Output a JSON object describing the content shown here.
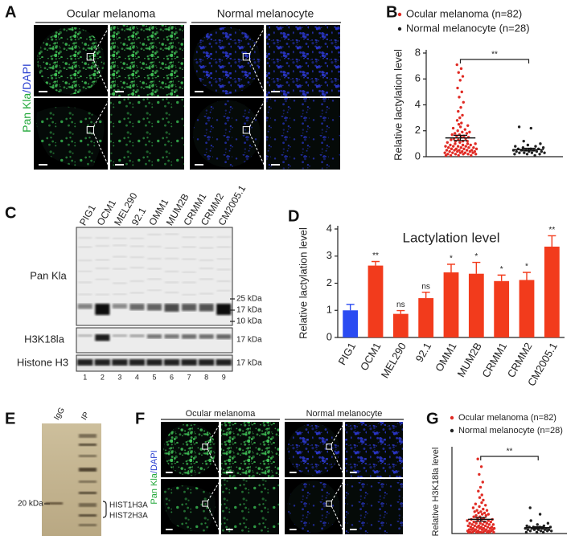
{
  "figure": {
    "A": {
      "label": "A",
      "columns": [
        "Ocular melanoma",
        "Normal melanocyte"
      ],
      "stain": [
        "Pan Kla",
        "/DAPI"
      ]
    },
    "C": {
      "label": "C",
      "lanes": [
        "PIG1",
        "OCM1",
        "MEL290",
        "92.1",
        "OMM1",
        "MUM2B",
        "CRMM1",
        "CRMM2",
        "CM2005.1"
      ],
      "rows": [
        "Pan Kla",
        "H3K18la",
        "Histone H3"
      ],
      "markers": [
        "25 kDa",
        "17 kDa",
        "10 kDa"
      ],
      "row_markers": [
        "17 kDa",
        "17 kDa"
      ],
      "lane_numbers": [
        "1",
        "2",
        "3",
        "4",
        "5",
        "6",
        "7",
        "8",
        "9"
      ]
    },
    "E": {
      "label": "E",
      "lanes": [
        "IgG",
        "IP"
      ],
      "marker": "20 kDa",
      "bands": [
        "HIST1H3A",
        "HIST2H3A"
      ]
    },
    "F": {
      "label": "F",
      "columns": [
        "Ocular melanoma",
        "Normal melanocyte"
      ],
      "stain": [
        "Pan Kla",
        "/DAPI"
      ]
    }
  },
  "chart_data": [
    {
      "type": "strip",
      "panel_label": "B",
      "ylabel": "Relative lactylation level",
      "ylim": [
        0,
        8
      ],
      "yticks": [
        0,
        2,
        4,
        6,
        8
      ],
      "annotation": "**",
      "series": [
        {
          "name": "Ocular melanoma (n=82)",
          "color": "#e02b24",
          "mean": 1.45,
          "error": 0.2,
          "values": [
            7.1,
            6.8,
            6.5,
            6.2,
            5.9,
            5.3,
            5.0,
            4.6,
            4.2,
            3.8,
            3.5,
            3.2,
            3.0,
            2.8,
            2.6,
            2.5,
            2.4,
            2.3,
            2.2,
            2.1,
            2.0,
            1.9,
            1.9,
            1.8,
            1.8,
            1.7,
            1.7,
            1.6,
            1.6,
            1.5,
            1.5,
            1.4,
            1.4,
            1.3,
            1.3,
            1.2,
            1.2,
            1.2,
            1.1,
            1.1,
            1.0,
            1.0,
            1.0,
            0.9,
            0.9,
            0.9,
            0.8,
            0.8,
            0.8,
            0.8,
            0.7,
            0.7,
            0.7,
            0.7,
            0.6,
            0.6,
            0.6,
            0.6,
            0.5,
            0.5,
            0.5,
            0.5,
            0.5,
            0.4,
            0.4,
            0.4,
            0.4,
            0.4,
            0.3,
            0.3,
            0.3,
            0.3,
            0.3,
            0.2,
            0.2,
            0.2,
            0.2,
            0.2,
            0.1,
            0.1,
            0.1,
            0.1
          ]
        },
        {
          "name": "Normal melanocyte (n=28)",
          "color": "#222222",
          "mean": 0.55,
          "error": 0.1,
          "values": [
            2.3,
            2.2,
            1.2,
            1.0,
            0.9,
            0.8,
            0.8,
            0.7,
            0.7,
            0.6,
            0.6,
            0.6,
            0.5,
            0.5,
            0.5,
            0.5,
            0.4,
            0.4,
            0.4,
            0.4,
            0.3,
            0.3,
            0.3,
            0.3,
            0.2,
            0.2,
            0.2,
            0.1
          ]
        }
      ]
    },
    {
      "type": "bar",
      "panel_label": "D",
      "title": "Lactylation level",
      "ylabel": "Relative lactylation level",
      "categories": [
        "PIG1",
        "OCM1",
        "MEL290",
        "92.1",
        "OMM1",
        "MUM2B",
        "CRMM1",
        "CRMM2",
        "CM2005.1"
      ],
      "values": [
        1.0,
        2.65,
        0.87,
        1.45,
        2.4,
        2.35,
        2.08,
        2.12,
        3.35
      ],
      "errors": [
        0.22,
        0.15,
        0.12,
        0.22,
        0.3,
        0.42,
        0.22,
        0.28,
        0.4
      ],
      "annotations": [
        null,
        "**",
        "ns",
        "ns",
        "*",
        "*",
        "*",
        "*",
        "**"
      ],
      "colors": [
        "#2a4bf2",
        "#f23b1c",
        "#f23b1c",
        "#f23b1c",
        "#f23b1c",
        "#f23b1c",
        "#f23b1c",
        "#f23b1c",
        "#f23b1c"
      ],
      "ylim": [
        0,
        4
      ],
      "yticks": [
        0,
        1,
        2,
        3,
        4
      ]
    },
    {
      "type": "strip",
      "panel_label": "G",
      "ylabel": "Relative H3K18la level",
      "ylim": [
        0,
        6.5
      ],
      "annotation": "**",
      "series": [
        {
          "name": "Ocular melanoma (n=82)",
          "color": "#e02b24",
          "mean": 1.1,
          "error": 0.15,
          "values": [
            5.8,
            5.2,
            4.6,
            4.0,
            3.6,
            3.3,
            3.0,
            2.8,
            2.6,
            2.4,
            2.3,
            2.2,
            2.1,
            2.0,
            1.9,
            1.8,
            1.8,
            1.7,
            1.7,
            1.6,
            1.6,
            1.5,
            1.5,
            1.4,
            1.4,
            1.3,
            1.3,
            1.2,
            1.2,
            1.1,
            1.1,
            1.1,
            1.0,
            1.0,
            1.0,
            0.9,
            0.9,
            0.9,
            0.8,
            0.8,
            0.8,
            0.8,
            0.7,
            0.7,
            0.7,
            0.7,
            0.6,
            0.6,
            0.6,
            0.6,
            0.5,
            0.5,
            0.5,
            0.5,
            0.5,
            0.4,
            0.4,
            0.4,
            0.4,
            0.4,
            0.3,
            0.3,
            0.3,
            0.3,
            0.3,
            0.3,
            0.2,
            0.2,
            0.2,
            0.2,
            0.2,
            0.2,
            0.1,
            0.1,
            0.1,
            0.1,
            0.1,
            0.1,
            0.1,
            0.1,
            0.1,
            0.1
          ]
        },
        {
          "name": "Normal melanocyte (n=28)",
          "color": "#222222",
          "mean": 0.45,
          "error": 0.08,
          "values": [
            2.0,
            1.5,
            1.0,
            0.8,
            0.7,
            0.6,
            0.6,
            0.5,
            0.5,
            0.5,
            0.5,
            0.4,
            0.4,
            0.4,
            0.4,
            0.4,
            0.3,
            0.3,
            0.3,
            0.3,
            0.3,
            0.2,
            0.2,
            0.2,
            0.2,
            0.1,
            0.1,
            0.1
          ]
        }
      ]
    }
  ]
}
